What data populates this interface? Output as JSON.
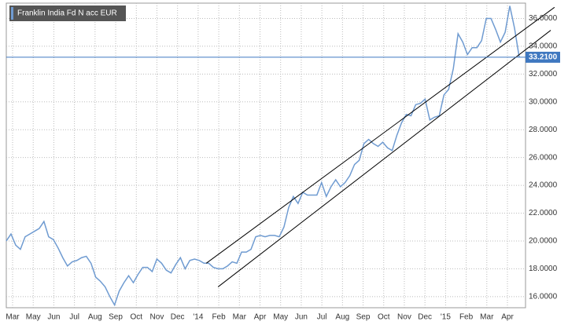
{
  "chart_data": {
    "type": "line",
    "series": [
      {
        "name": "Franklin India Fd N acc EUR",
        "color": "#6f9bd1",
        "values": [
          20.0,
          20.5,
          19.7,
          19.4,
          20.3,
          20.5,
          20.7,
          20.9,
          21.4,
          20.3,
          20.1,
          19.5,
          18.8,
          18.2,
          18.5,
          18.6,
          18.8,
          18.9,
          18.4,
          17.4,
          17.1,
          16.7,
          16.0,
          15.4,
          16.4,
          17.0,
          17.5,
          17.0,
          17.6,
          18.1,
          18.1,
          17.8,
          18.7,
          18.4,
          17.9,
          17.7,
          18.3,
          18.8,
          18.0,
          18.6,
          18.7,
          18.6,
          18.4,
          18.4,
          18.1,
          18.0,
          18.0,
          18.2,
          18.5,
          18.4,
          19.2,
          19.2,
          19.4,
          20.3,
          20.4,
          20.3,
          20.4,
          20.4,
          20.3,
          21.0,
          22.4,
          23.2,
          22.7,
          23.5,
          23.3,
          23.3,
          23.3,
          24.2,
          23.2,
          23.9,
          24.4,
          23.9,
          24.2,
          24.7,
          25.5,
          25.8,
          27.0,
          27.3,
          27.0,
          26.8,
          27.1,
          26.7,
          26.5,
          27.6,
          28.5,
          29.1,
          29.0,
          29.8,
          29.9,
          30.2,
          28.7,
          28.9,
          29.0,
          30.5,
          30.9,
          32.4,
          34.9,
          34.3,
          33.4,
          33.9,
          33.9,
          34.4,
          36.0,
          36.0,
          35.2,
          34.3,
          35.0,
          36.9,
          35.3,
          33.21
        ]
      }
    ],
    "x_labels": [
      "Mar",
      "May",
      "Jun",
      "Jul",
      "Aug",
      "Sep",
      "Oct",
      "Nov",
      "Dec",
      "'14",
      "Feb",
      "Mar",
      "Apr",
      "May",
      "Jun",
      "Jul",
      "Aug",
      "Sep",
      "Oct",
      "Nov",
      "Dec",
      "'15",
      "Feb",
      "Mar",
      "Apr"
    ],
    "ylim": [
      15.2,
      37.1
    ],
    "yticks": [
      {
        "value": 16,
        "label": "16.0000"
      },
      {
        "value": 18,
        "label": "18.0000"
      },
      {
        "value": 20,
        "label": "20.0000"
      },
      {
        "value": 22,
        "label": "22.0000"
      },
      {
        "value": 24,
        "label": "24.0000"
      },
      {
        "value": 26,
        "label": "26.0000"
      },
      {
        "value": 28,
        "label": "28.0000"
      },
      {
        "value": 30,
        "label": "30.0000"
      },
      {
        "value": 32,
        "label": "32.0000"
      },
      {
        "value": 34,
        "label": "34.0000"
      },
      {
        "value": 36,
        "label": "36.0000"
      }
    ],
    "grid": true,
    "price_line": {
      "value": 33.21,
      "label": "33.2100",
      "color": "#3f78c0"
    },
    "trend_lines": [
      {
        "start": [
          42.5,
          18.4
        ],
        "end": [
          116.5,
          36.8
        ]
      },
      {
        "start": [
          45,
          16.7
        ],
        "end": [
          115.7,
          35.15
        ]
      }
    ]
  }
}
